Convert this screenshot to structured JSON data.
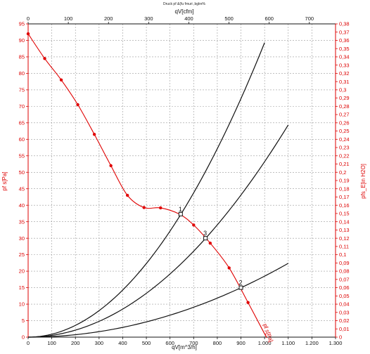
{
  "chart_data": {
    "type": "line",
    "title": "Druck pf &(fu fmuri ,bglre%",
    "x_bottom": {
      "label": "qV[m^3/h]",
      "range": [
        0,
        1300
      ],
      "ticks": [
        "0",
        "100",
        "200",
        "300",
        "400",
        "500",
        "600",
        "700",
        "800",
        "900",
        "1.000",
        "1.100",
        "1.200",
        "1.300"
      ]
    },
    "x_top": {
      "label": "qV[cfm]",
      "range_cfm": [
        0,
        765.1
      ],
      "ticks": [
        "0",
        "100",
        "200",
        "300",
        "400",
        "500",
        "600",
        "700"
      ]
    },
    "y_left": {
      "label": "pf s[Pa]",
      "range": [
        0,
        95
      ],
      "ticks": [
        "0",
        "5",
        "10",
        "15",
        "20",
        "25",
        "30",
        "35",
        "40",
        "45",
        "50",
        "55",
        "60",
        "65",
        "70",
        "75",
        "80",
        "85",
        "90",
        "95"
      ]
    },
    "y_right": {
      "label": "pfs_E[in H2O]",
      "range": [
        0,
        0.38
      ],
      "ticks": [
        "0",
        "0,01",
        "0,02",
        "0,03",
        "0,04",
        "0,05",
        "0,06",
        "0,07",
        "0,08",
        "0,09",
        "0,1",
        "0,11",
        "0,12",
        "0,13",
        "0,14",
        "0,15",
        "0,16",
        "0,17",
        "0,18",
        "0,19",
        "0,2",
        "0,21",
        "0,22",
        "0,23",
        "0,24",
        "0,25",
        "0,26",
        "0,27",
        "0,28",
        "0,29",
        "0,3",
        "0,31",
        "0,32",
        "0,33",
        "0,34",
        "0,35",
        "0,36",
        "0,37",
        "0,38"
      ]
    },
    "grid": true,
    "fan_curve": {
      "color": "#e00000",
      "label": "pf s[Pa]",
      "points": [
        [
          0,
          92
        ],
        [
          70,
          84.5
        ],
        [
          140,
          78
        ],
        [
          210,
          70.5
        ],
        [
          280,
          61.5
        ],
        [
          350,
          52
        ],
        [
          420,
          43
        ],
        [
          490,
          39.3
        ],
        [
          560,
          39.2
        ],
        [
          640,
          37.3
        ],
        [
          700,
          34
        ],
        [
          770,
          28.5
        ],
        [
          850,
          21
        ],
        [
          930,
          10.5
        ],
        [
          1000,
          1
        ],
        [
          1010,
          0
        ]
      ],
      "markers": [
        [
          0,
          92
        ],
        [
          70,
          84.5
        ],
        [
          140,
          78
        ],
        [
          210,
          70.5
        ],
        [
          280,
          61.5
        ],
        [
          350,
          52
        ],
        [
          420,
          43
        ],
        [
          490,
          39.3
        ],
        [
          560,
          39.2
        ],
        [
          700,
          34
        ],
        [
          770,
          28.5
        ],
        [
          850,
          21
        ],
        [
          930,
          10.5
        ]
      ]
    },
    "system_curves": [
      {
        "k": 8.93e-05,
        "x_end": 1000,
        "color": "#111111"
      },
      {
        "k": 5.32e-05,
        "x_end": 1100,
        "color": "#111111"
      },
      {
        "k": 1.85e-05,
        "x_end": 1100,
        "color": "#111111"
      }
    ],
    "operating_points": [
      {
        "label": "1",
        "x": 645,
        "y": 37.3
      },
      {
        "label": "3",
        "x": 750,
        "y": 30
      },
      {
        "label": "2",
        "x": 900,
        "y": 15
      }
    ]
  }
}
